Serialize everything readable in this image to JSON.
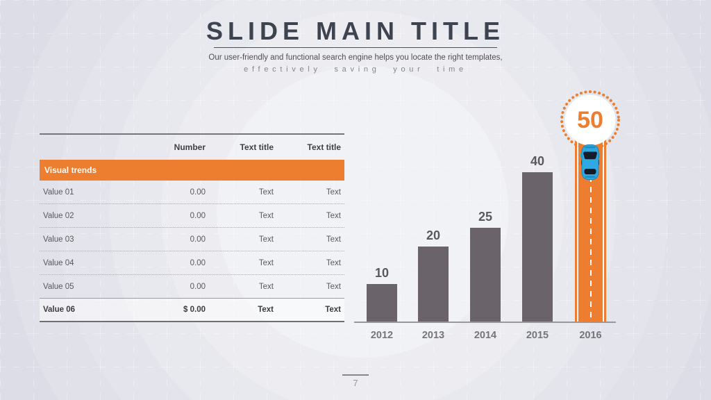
{
  "slide": {
    "title": "SLIDE MAIN TITLE",
    "subtitle_line1": "Our user-friendly and functional search engine helps you locate the right templates,",
    "subtitle_line2": "effectively saving your time",
    "page_number": "7"
  },
  "table": {
    "headers": {
      "number": "Number",
      "col3": "Text title",
      "col4": "Text title"
    },
    "group_header": "Visual trends",
    "rows": [
      {
        "label": "Value 01",
        "number": "0.00",
        "col3": "Text",
        "col4": "Text"
      },
      {
        "label": "Value 02",
        "number": "0.00",
        "col3": "Text",
        "col4": "Text"
      },
      {
        "label": "Value 03",
        "number": "0.00",
        "col3": "Text",
        "col4": "Text"
      },
      {
        "label": "Value 04",
        "number": "0.00",
        "col3": "Text",
        "col4": "Text"
      },
      {
        "label": "Value 05",
        "number": "0.00",
        "col3": "Text",
        "col4": "Text"
      },
      {
        "label": "Value 06",
        "number": "$ 0.00",
        "col3": "Text",
        "col4": "Text"
      }
    ]
  },
  "chart_data": {
    "type": "bar",
    "categories": [
      "2012",
      "2013",
      "2014",
      "2015",
      "2016"
    ],
    "values": [
      10,
      20,
      25,
      40,
      50
    ],
    "title": "",
    "xlabel": "",
    "ylabel": "",
    "ylim": [
      0,
      50
    ],
    "grid": false,
    "legend": "none",
    "highlight": {
      "category": "2016",
      "value": 50,
      "style": "orange-road-with-car-and-dotted-circle-badge"
    }
  },
  "colors": {
    "accent_orange": "#ed7d2f",
    "bar_gray": "#6a6369",
    "title_dark": "#3d4450",
    "car_blue": "#2fa9e1",
    "background": "#e9eaee"
  }
}
